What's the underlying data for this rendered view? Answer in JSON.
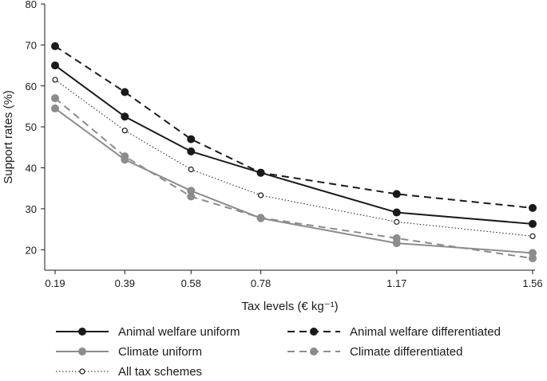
{
  "chart_data": {
    "type": "line",
    "title": "",
    "xlabel": "Tax levels (€ kg⁻¹)",
    "ylabel": "Support rates (%)",
    "categories": [
      "0.19",
      "0.39",
      "0.58",
      "0.78",
      "1.17",
      "1.56"
    ],
    "x": [
      0.19,
      0.39,
      0.58,
      0.78,
      1.17,
      1.56
    ],
    "ylim": [
      15,
      80
    ],
    "yticks": [
      20,
      30,
      40,
      50,
      60,
      70,
      80
    ],
    "grid": false,
    "legend_position": "bottom",
    "series": [
      {
        "name": "Animal welfare uniform",
        "color": "#1a1a1a",
        "dash": "solid",
        "marker": "filled",
        "values": [
          65.0,
          52.5,
          44.0,
          38.8,
          29.1,
          26.3
        ]
      },
      {
        "name": "Animal welfare differentiated",
        "color": "#1a1a1a",
        "dash": "dashed",
        "marker": "filled",
        "values": [
          69.7,
          58.5,
          47.0,
          38.8,
          33.6,
          30.2
        ]
      },
      {
        "name": "Climate uniform",
        "color": "#8c8c8c",
        "dash": "solid",
        "marker": "filled",
        "values": [
          54.5,
          42.0,
          34.4,
          27.7,
          21.6,
          19.2
        ]
      },
      {
        "name": "Climate differentiated",
        "color": "#8c8c8c",
        "dash": "dashed",
        "marker": "filled",
        "values": [
          57.0,
          42.8,
          33.0,
          27.8,
          22.8,
          17.9
        ]
      },
      {
        "name": "All tax schemes",
        "color": "#1a1a1a",
        "dash": "dotted",
        "marker": "open",
        "values": [
          61.5,
          49.1,
          39.6,
          33.3,
          26.8,
          23.3
        ]
      }
    ]
  }
}
